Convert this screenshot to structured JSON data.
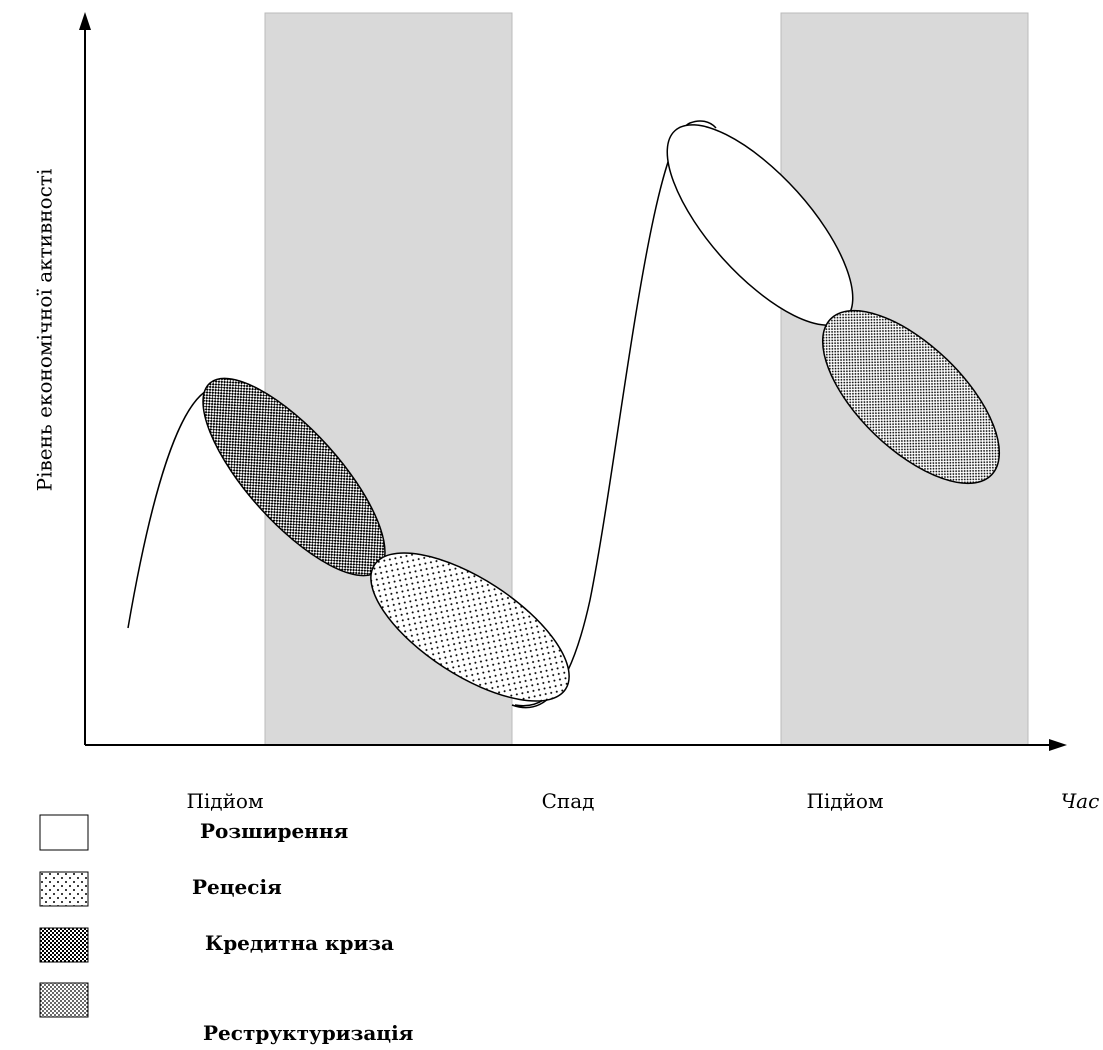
{
  "axis": {
    "y_label": "Рівень економічної активності",
    "x_label": "Час"
  },
  "phases": [
    "Підйом",
    "Спад",
    "Підйом"
  ],
  "legend": [
    "Розширення",
    "Рецесія",
    "Кредитна криза",
    "Реструктуризація"
  ]
}
